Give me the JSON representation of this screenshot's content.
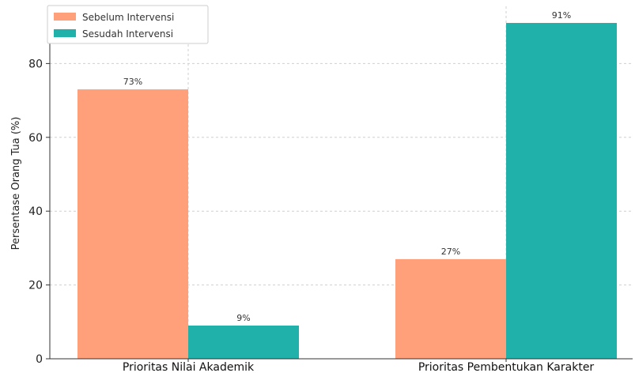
{
  "chart_data": {
    "type": "bar",
    "categories": [
      "Prioritas Nilai Akademik",
      "Prioritas Pembentukan Karakter"
    ],
    "series": [
      {
        "name": "Sebelum Intervensi",
        "values": [
          73,
          27
        ],
        "color": "#FFA07A",
        "labels": [
          "73%",
          "27%"
        ]
      },
      {
        "name": "Sesudah Intervensi",
        "values": [
          9,
          91
        ],
        "color": "#20B2AA",
        "labels": [
          "9%",
          "91%"
        ]
      }
    ],
    "ylabel": "Persentase Orang Tua (%)",
    "xlabel": "",
    "ylim": [
      0,
      95.5
    ],
    "yticks": [
      0,
      20,
      40,
      60,
      80
    ],
    "grid": true,
    "legend_position": "top-left"
  }
}
